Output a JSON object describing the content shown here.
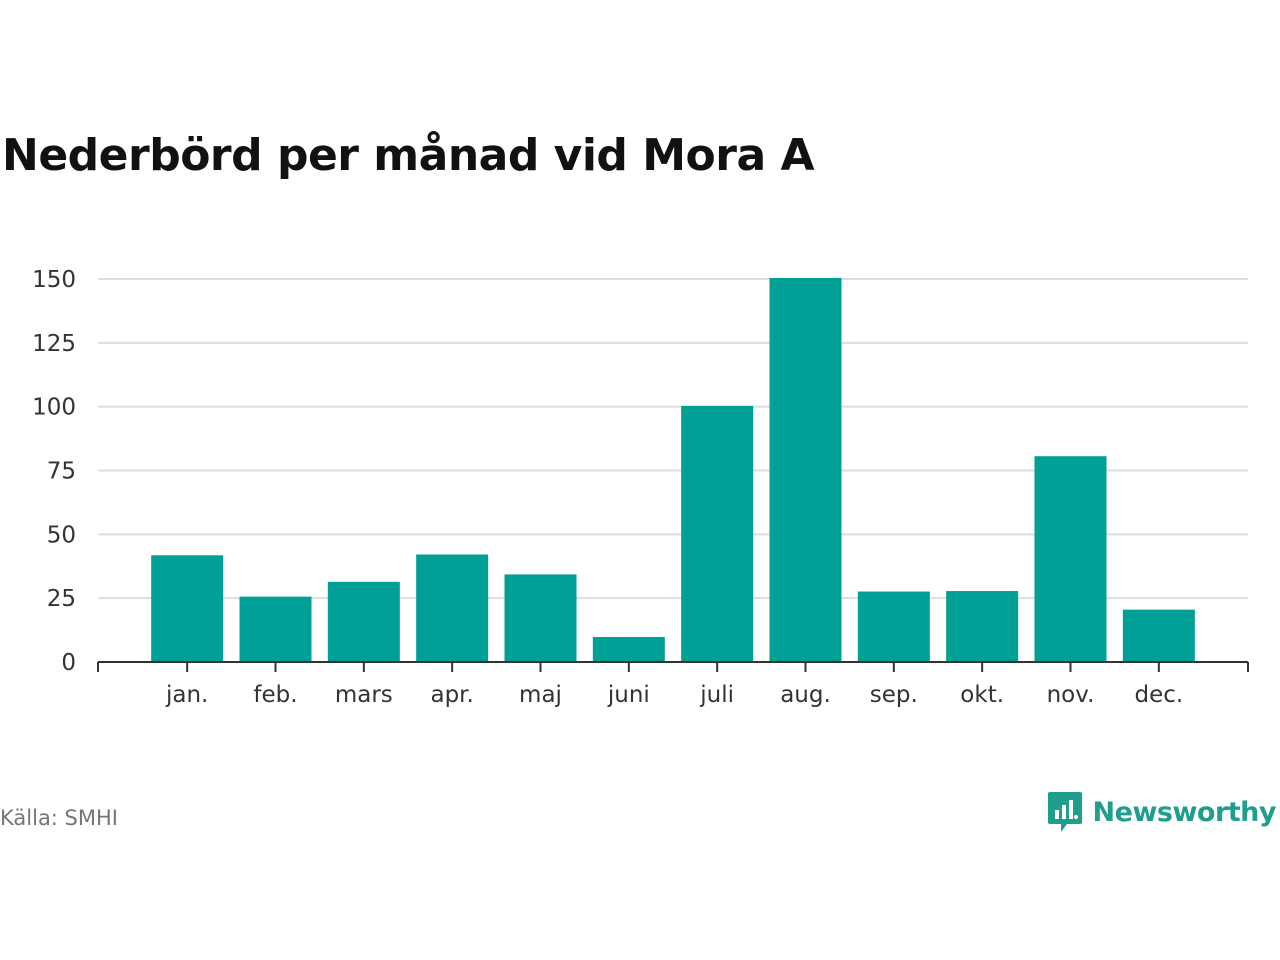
{
  "title": "Nederbörd per månad vid Mora A",
  "source": "Källa: SMHI",
  "brand": {
    "name": "Newsworthy",
    "icon": "newsworthy-logo-icon",
    "color": "#1f9e8e"
  },
  "colors": {
    "bar": "#00a096",
    "grid": "#dddddd",
    "axis": "#333333"
  },
  "chart_data": {
    "type": "bar",
    "title": "Nederbörd per månad vid Mora A",
    "xlabel": "",
    "ylabel": "",
    "categories": [
      "jan.",
      "feb.",
      "mars",
      "apr.",
      "maj",
      "juni",
      "juli",
      "aug.",
      "sep.",
      "okt.",
      "nov.",
      "dec."
    ],
    "values": [
      41.8,
      25.6,
      31.4,
      42.1,
      34.3,
      9.8,
      100.3,
      150.4,
      27.6,
      27.8,
      80.6,
      20.5
    ],
    "ylim": [
      0,
      150
    ],
    "yticks": [
      0,
      25,
      50,
      75,
      100,
      125,
      150
    ],
    "grid": true,
    "legend": "none"
  }
}
